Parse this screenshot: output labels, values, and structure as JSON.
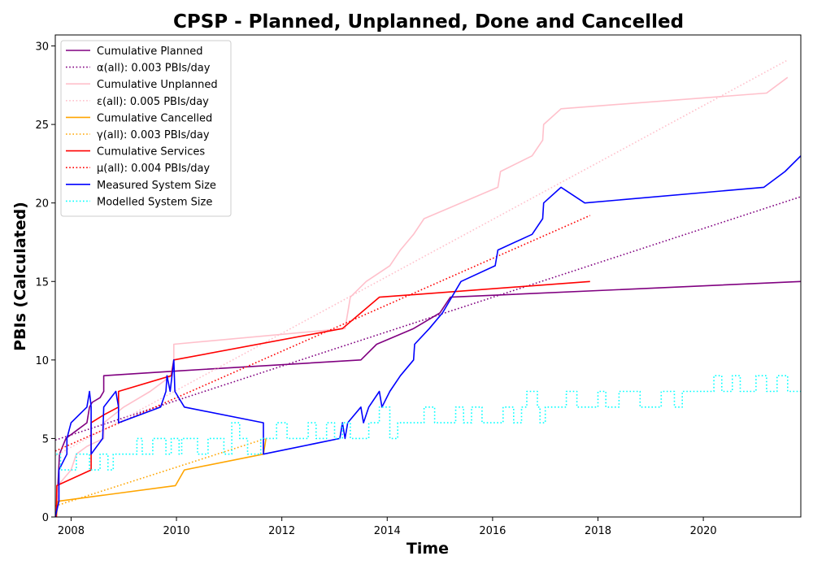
{
  "chart_data": {
    "type": "line",
    "title": "CPSP - Planned, Unplanned, Done  and Cancelled",
    "xlabel": "Time",
    "ylabel": "PBIs (Calculated)",
    "xlim": [
      2007.7,
      2021.85
    ],
    "ylim": [
      0,
      30.7
    ],
    "x_ticks": [
      2008,
      2010,
      2012,
      2014,
      2016,
      2018,
      2020
    ],
    "y_ticks": [
      0,
      5,
      10,
      15,
      20,
      25,
      30
    ],
    "legend_position": "top-left",
    "grid": false,
    "series": [
      {
        "name": "Cumulative Planned",
        "style": "solid",
        "color": "#800080",
        "points": [
          [
            2007.72,
            0
          ],
          [
            2007.75,
            2
          ],
          [
            2007.78,
            4
          ],
          [
            2007.9,
            5
          ],
          [
            2008.1,
            5.5
          ],
          [
            2008.3,
            6
          ],
          [
            2008.35,
            7
          ],
          [
            2008.4,
            7.3
          ],
          [
            2008.55,
            7.6
          ],
          [
            2008.62,
            8
          ],
          [
            2008.62,
            9
          ],
          [
            2010,
            9.3
          ],
          [
            2013.5,
            10
          ],
          [
            2013.8,
            11
          ],
          [
            2014.5,
            12
          ],
          [
            2015,
            13
          ],
          [
            2015.2,
            14
          ],
          [
            2021.85,
            15
          ]
        ]
      },
      {
        "name": "α(all): 0.003 PBIs/day",
        "style": "dotted",
        "color": "#800080",
        "points": [
          [
            2007.7,
            4.9
          ],
          [
            2021.85,
            20.4
          ]
        ]
      },
      {
        "name": "Cumulative Unplanned",
        "style": "solid",
        "color": "#ffc0cb",
        "points": [
          [
            2007.72,
            0
          ],
          [
            2007.75,
            2
          ],
          [
            2008,
            3
          ],
          [
            2008.1,
            4
          ],
          [
            2008.3,
            4.5
          ],
          [
            2008.62,
            5
          ],
          [
            2008.62,
            6
          ],
          [
            2009,
            7
          ],
          [
            2009.5,
            8
          ],
          [
            2009.9,
            9
          ],
          [
            2009.95,
            10
          ],
          [
            2009.95,
            11
          ],
          [
            2013.2,
            12
          ],
          [
            2013.25,
            13
          ],
          [
            2013.3,
            14
          ],
          [
            2013.6,
            15
          ],
          [
            2014.05,
            16
          ],
          [
            2014.25,
            17
          ],
          [
            2014.5,
            18
          ],
          [
            2014.7,
            19
          ],
          [
            2016.1,
            21
          ],
          [
            2016.15,
            22
          ],
          [
            2016.75,
            23
          ],
          [
            2016.95,
            24
          ],
          [
            2016.97,
            25
          ],
          [
            2017.3,
            26
          ],
          [
            2021.2,
            27
          ],
          [
            2021.6,
            28
          ]
        ]
      },
      {
        "name": "ε(all): 0.005 PBIs/day",
        "style": "dotted",
        "color": "#ffc0cb",
        "points": [
          [
            2007.7,
            3.9
          ],
          [
            2021.6,
            29.1
          ]
        ]
      },
      {
        "name": "Cumulative Cancelled",
        "style": "solid",
        "color": "#ffa500",
        "points": [
          [
            2007.72,
            0
          ],
          [
            2007.75,
            1
          ],
          [
            2009.98,
            2
          ],
          [
            2010.15,
            3
          ],
          [
            2011.65,
            4
          ],
          [
            2011.7,
            5
          ]
        ]
      },
      {
        "name": "γ(all): 0.003 PBIs/day",
        "style": "dotted",
        "color": "#ffa500",
        "points": [
          [
            2007.7,
            0.7
          ],
          [
            2011.7,
            5
          ]
        ]
      },
      {
        "name": "Cumulative Services",
        "style": "solid",
        "color": "#ff0000",
        "points": [
          [
            2007.72,
            0
          ],
          [
            2007.73,
            2
          ],
          [
            2008.38,
            3
          ],
          [
            2008.38,
            6
          ],
          [
            2008.62,
            6.5
          ],
          [
            2008.9,
            7
          ],
          [
            2008.9,
            8
          ],
          [
            2009.9,
            9
          ],
          [
            2009.95,
            10
          ],
          [
            2013.15,
            12
          ],
          [
            2013.5,
            13
          ],
          [
            2013.85,
            14
          ],
          [
            2017.85,
            15
          ]
        ]
      },
      {
        "name": "μ(all): 0.004 PBIs/day",
        "style": "dotted",
        "color": "#ff0000",
        "points": [
          [
            2007.7,
            4.2
          ],
          [
            2017.85,
            19.2
          ]
        ]
      },
      {
        "name": "Measured System Size",
        "style": "solid",
        "color": "#0000ff",
        "points": [
          [
            2007.7,
            0
          ],
          [
            2007.77,
            1
          ],
          [
            2007.77,
            3
          ],
          [
            2007.92,
            4
          ],
          [
            2007.92,
            5
          ],
          [
            2008,
            6
          ],
          [
            2008.3,
            7
          ],
          [
            2008.35,
            8
          ],
          [
            2008.38,
            7
          ],
          [
            2008.38,
            4
          ],
          [
            2008.6,
            5
          ],
          [
            2008.62,
            7
          ],
          [
            2008.85,
            8
          ],
          [
            2008.9,
            7
          ],
          [
            2008.9,
            6
          ],
          [
            2009.7,
            7
          ],
          [
            2009.8,
            8
          ],
          [
            2009.82,
            9
          ],
          [
            2009.88,
            8
          ],
          [
            2009.95,
            10
          ],
          [
            2009.97,
            8
          ],
          [
            2010.15,
            7
          ],
          [
            2011.65,
            6
          ],
          [
            2011.65,
            4
          ],
          [
            2013.1,
            5
          ],
          [
            2013.15,
            6
          ],
          [
            2013.2,
            5
          ],
          [
            2013.25,
            6
          ],
          [
            2013.5,
            7
          ],
          [
            2013.55,
            6
          ],
          [
            2013.65,
            7
          ],
          [
            2013.85,
            8
          ],
          [
            2013.9,
            7
          ],
          [
            2014.05,
            8
          ],
          [
            2014.25,
            9
          ],
          [
            2014.5,
            10
          ],
          [
            2014.52,
            11
          ],
          [
            2014.8,
            12
          ],
          [
            2015.05,
            13
          ],
          [
            2015.4,
            15
          ],
          [
            2016.05,
            16
          ],
          [
            2016.1,
            17
          ],
          [
            2016.75,
            18
          ],
          [
            2016.95,
            19
          ],
          [
            2016.97,
            20
          ],
          [
            2017.3,
            21
          ],
          [
            2017.75,
            20
          ],
          [
            2021.15,
            21
          ],
          [
            2021.55,
            22
          ],
          [
            2021.85,
            23
          ]
        ]
      },
      {
        "name": "Modelled System Size",
        "style": "dotted",
        "color": "#00ffff",
        "step": true,
        "points": [
          [
            2007.72,
            4
          ],
          [
            2007.8,
            3
          ],
          [
            2008.1,
            4
          ],
          [
            2008.35,
            3
          ],
          [
            2008.55,
            4
          ],
          [
            2008.7,
            3
          ],
          [
            2008.8,
            4
          ],
          [
            2009.25,
            5
          ],
          [
            2009.35,
            4
          ],
          [
            2009.55,
            5
          ],
          [
            2009.8,
            4
          ],
          [
            2009.9,
            5
          ],
          [
            2010.05,
            4
          ],
          [
            2010.1,
            5
          ],
          [
            2010.4,
            4
          ],
          [
            2010.6,
            5
          ],
          [
            2010.9,
            4
          ],
          [
            2011.05,
            6
          ],
          [
            2011.2,
            5
          ],
          [
            2011.35,
            4
          ],
          [
            2011.6,
            5
          ],
          [
            2011.9,
            6
          ],
          [
            2012.1,
            5
          ],
          [
            2012.5,
            6
          ],
          [
            2012.65,
            5
          ],
          [
            2012.85,
            6
          ],
          [
            2013.0,
            5
          ],
          [
            2013.15,
            6
          ],
          [
            2013.3,
            5
          ],
          [
            2013.65,
            6
          ],
          [
            2013.85,
            7
          ],
          [
            2014.05,
            5
          ],
          [
            2014.2,
            6
          ],
          [
            2014.7,
            7
          ],
          [
            2014.9,
            6
          ],
          [
            2015.3,
            7
          ],
          [
            2015.45,
            6
          ],
          [
            2015.6,
            7
          ],
          [
            2015.8,
            6
          ],
          [
            2016.2,
            7
          ],
          [
            2016.4,
            6
          ],
          [
            2016.55,
            7
          ],
          [
            2016.65,
            8
          ],
          [
            2016.85,
            7
          ],
          [
            2016.9,
            6
          ],
          [
            2017.0,
            7
          ],
          [
            2017.4,
            8
          ],
          [
            2017.6,
            7
          ],
          [
            2018.0,
            8
          ],
          [
            2018.15,
            7
          ],
          [
            2018.4,
            8
          ],
          [
            2018.8,
            7
          ],
          [
            2019.2,
            8
          ],
          [
            2019.45,
            7
          ],
          [
            2019.6,
            8
          ],
          [
            2019.9,
            8
          ],
          [
            2020.2,
            9
          ],
          [
            2020.35,
            8
          ],
          [
            2020.55,
            9
          ],
          [
            2020.7,
            8
          ],
          [
            2021.0,
            9
          ],
          [
            2021.2,
            8
          ],
          [
            2021.4,
            9
          ],
          [
            2021.6,
            8
          ],
          [
            2021.85,
            8
          ]
        ]
      }
    ]
  }
}
